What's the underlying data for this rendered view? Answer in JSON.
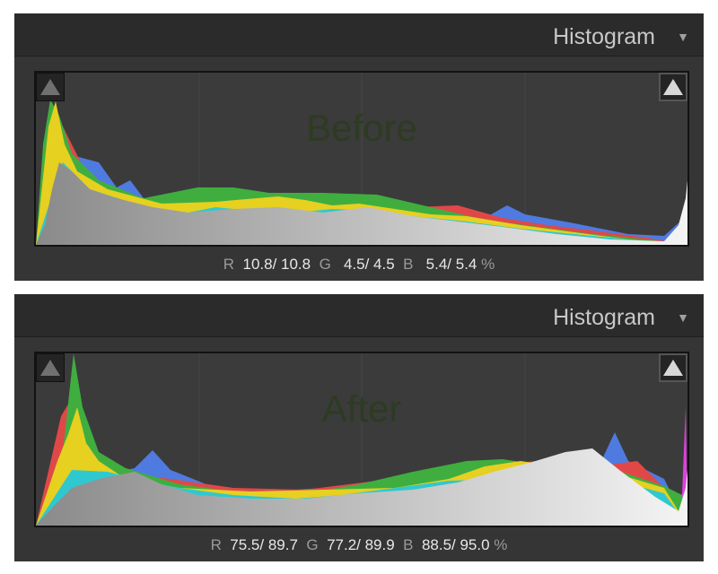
{
  "panels": [
    {
      "title": "Histogram",
      "label": "Before",
      "readout": {
        "r_label": "R",
        "r_value": "10.8/ 10.8",
        "g_label": "G",
        "g_value": "4.5/ 4.5",
        "b_label": "B",
        "b_value": "5.4/ 5.4",
        "unit": "%"
      }
    },
    {
      "title": "Histogram",
      "label": "After",
      "readout": {
        "r_label": "R",
        "r_value": "75.5/ 89.7",
        "g_label": "G",
        "g_value": "77.2/ 89.9",
        "b_label": "B",
        "b_value": "88.5/ 95.0",
        "unit": "%"
      }
    }
  ],
  "icons": {
    "collapse": "triangle-down-icon",
    "shadow_clip": "shadow-clipping-icon",
    "highlight_clip": "highlight-clipping-icon"
  },
  "colors": {
    "panel_bg": "#353535",
    "header_bg": "#2b2b2b",
    "histogram_bg": "#3b3b3b"
  }
}
